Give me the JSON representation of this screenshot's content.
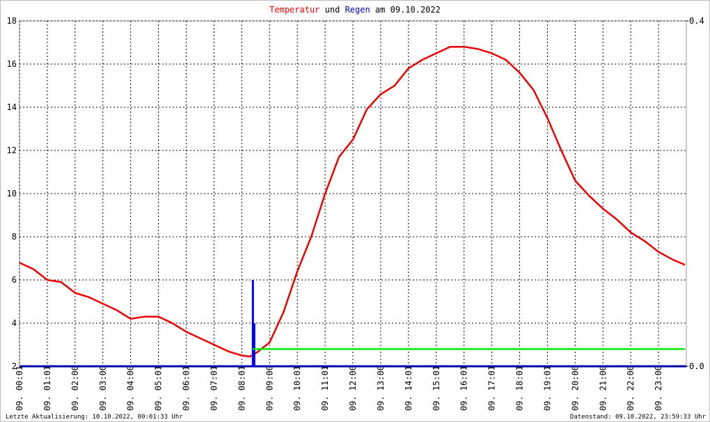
{
  "chart_data": {
    "type": "line",
    "title_parts": [
      "und",
      "am 09.10.2022"
    ],
    "xlim": [
      0,
      24
    ],
    "xticks": [
      {
        "value": 0,
        "label": "09. 00:01"
      },
      {
        "value": 1,
        "label": "09. 01:01"
      },
      {
        "value": 2,
        "label": "09. 02:00"
      },
      {
        "value": 3,
        "label": "09. 03:00"
      },
      {
        "value": 4,
        "label": "09. 04:00"
      },
      {
        "value": 5,
        "label": "09. 05:01"
      },
      {
        "value": 6,
        "label": "09. 06:01"
      },
      {
        "value": 7,
        "label": "09. 07:01"
      },
      {
        "value": 8,
        "label": "09. 08:01"
      },
      {
        "value": 9,
        "label": "09. 09:00"
      },
      {
        "value": 10,
        "label": "09. 10:01"
      },
      {
        "value": 11,
        "label": "09. 11:01"
      },
      {
        "value": 12,
        "label": "09. 12:00"
      },
      {
        "value": 13,
        "label": "09. 13:00"
      },
      {
        "value": 14,
        "label": "09. 14:01"
      },
      {
        "value": 15,
        "label": "09. 15:01"
      },
      {
        "value": 16,
        "label": "09. 16:01"
      },
      {
        "value": 17,
        "label": "09. 17:01"
      },
      {
        "value": 18,
        "label": "09. 18:01"
      },
      {
        "value": 19,
        "label": "09. 19:01"
      },
      {
        "value": 20,
        "label": "09. 20:00"
      },
      {
        "value": 21,
        "label": "09. 21:00"
      },
      {
        "value": 22,
        "label": "09. 22:00"
      },
      {
        "value": 23,
        "label": "09. 23:00"
      }
    ],
    "ylim": [
      2,
      18
    ],
    "yticks": [
      2,
      4,
      6,
      8,
      10,
      12,
      14,
      16,
      18
    ],
    "y2lim": [
      0,
      0.4
    ],
    "y2ticks": [
      {
        "value": 0,
        "label": "0.0"
      },
      {
        "value": 0.4,
        "label": "0.4"
      }
    ],
    "grid": true,
    "series": [
      {
        "name": "Temperatur",
        "color": "#ee0000",
        "type": "line",
        "x": [
          0,
          0.5,
          1,
          1.5,
          2,
          2.5,
          3,
          3.5,
          4,
          4.5,
          5,
          5.5,
          6,
          6.5,
          7,
          7.5,
          8,
          8.3,
          8.5,
          9,
          9.5,
          10,
          10.5,
          11,
          11.5,
          12,
          12.5,
          13,
          13.5,
          14,
          14.5,
          15,
          15.5,
          16,
          16.5,
          17,
          17.5,
          18,
          18.5,
          19,
          19.5,
          20,
          20.5,
          21,
          21.5,
          22,
          22.5,
          23,
          23.5,
          23.95
        ],
        "values": [
          6.8,
          6.5,
          6.0,
          5.9,
          5.4,
          5.2,
          4.9,
          4.6,
          4.2,
          4.3,
          4.3,
          4.0,
          3.6,
          3.3,
          3.0,
          2.7,
          2.5,
          2.45,
          2.6,
          3.1,
          4.5,
          6.4,
          8.0,
          10.0,
          11.7,
          12.5,
          13.9,
          14.6,
          15.0,
          15.8,
          16.2,
          16.5,
          16.8,
          16.8,
          16.7,
          16.5,
          16.2,
          15.6,
          14.8,
          13.5,
          12.0,
          10.6,
          9.9,
          9.3,
          8.8,
          8.2,
          7.8,
          7.3,
          6.95,
          6.7
        ]
      },
      {
        "name": "Regen",
        "color": "#0000ee",
        "type": "bar",
        "axis": "y2",
        "x": [
          8.4,
          8.45
        ],
        "values": [
          0.1,
          0.05
        ]
      },
      {
        "color": "#00ee00",
        "type": "line",
        "x": [
          8.4,
          23.95
        ],
        "values": [
          2.8,
          2.8
        ]
      }
    ]
  },
  "footer": {
    "left": "Letzte Aktualisierung: 10.10.2022, 00:01:33 Uhr",
    "right": "Datenstand: 09.10.2022, 23:59:33 Uhr"
  }
}
